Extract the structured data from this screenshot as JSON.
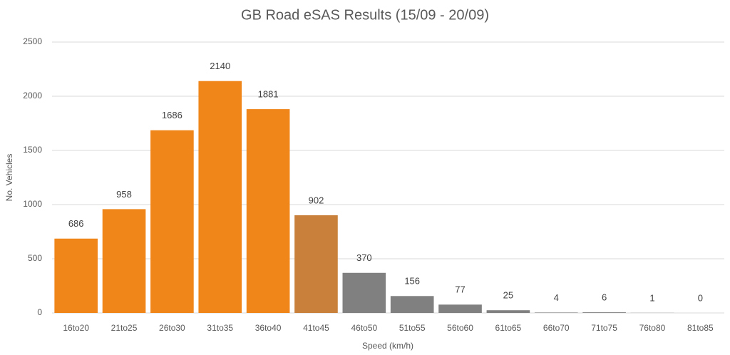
{
  "chart_data": {
    "type": "bar",
    "title": "GB Road eSAS Results (15/09 - 20/09)",
    "x_label": "Speed (km/h)",
    "y_label": "No. Vehicles",
    "categories": [
      "16to20",
      "21to25",
      "26to30",
      "31to35",
      "36to40",
      "41to45",
      "46to50",
      "51to55",
      "56to60",
      "61to65",
      "66to70",
      "71to75",
      "76to80",
      "81to85"
    ],
    "values": [
      686,
      958,
      1686,
      2140,
      1881,
      902,
      370,
      156,
      77,
      25,
      4,
      6,
      1,
      0
    ],
    "colors": [
      "#f0861a",
      "#f0861a",
      "#f0861a",
      "#f0861a",
      "#f0861a",
      "#c8803a",
      "#808080",
      "#808080",
      "#808080",
      "#808080",
      "#808080",
      "#808080",
      "#808080",
      "#808080"
    ],
    "ylim": [
      0,
      2500
    ],
    "yticks": [
      0,
      500,
      1000,
      1500,
      2000,
      2500
    ],
    "grid": true
  }
}
